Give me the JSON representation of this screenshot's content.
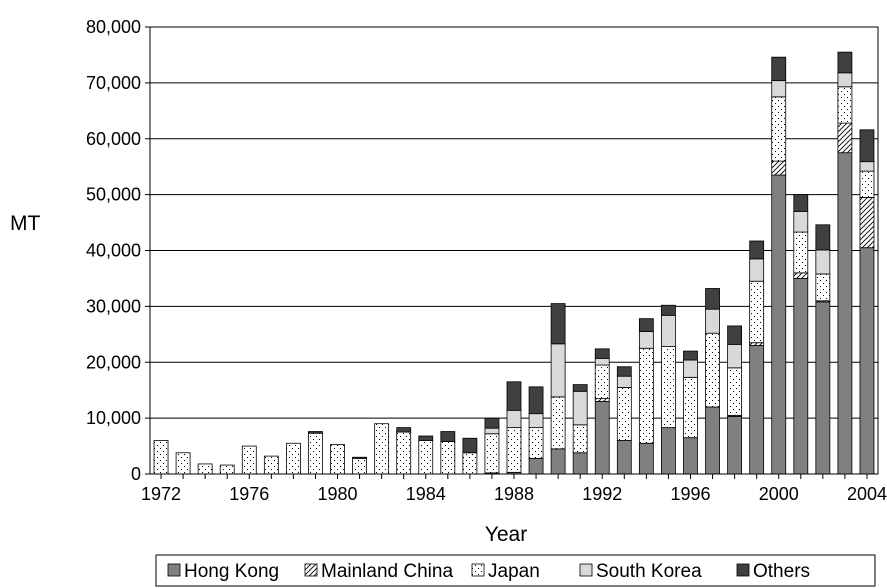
{
  "chart_data": {
    "type": "bar",
    "stacked": true,
    "title": "",
    "xlabel": "Year",
    "ylabel": "MT",
    "ylim": [
      0,
      80000
    ],
    "yticks": [
      "0",
      "10,000",
      "20,000",
      "30,000",
      "40,000",
      "50,000",
      "60,000",
      "70,000",
      "80,000"
    ],
    "xticks": [
      "1972",
      "1976",
      "1980",
      "1984",
      "1988",
      "1992",
      "1996",
      "2000",
      "2004"
    ],
    "grid": "horizontal",
    "legend_position": "bottom",
    "categories": [
      "1972",
      "1973",
      "1974",
      "1975",
      "1976",
      "1977",
      "1978",
      "1979",
      "1980",
      "1981",
      "1982",
      "1983",
      "1984",
      "1985",
      "1986",
      "1987",
      "1988",
      "1989",
      "1990",
      "1991",
      "1992",
      "1993",
      "1994",
      "1995",
      "1996",
      "1997",
      "1998",
      "1999",
      "2000",
      "2001",
      "2002",
      "2003",
      "2004"
    ],
    "series": [
      {
        "name": "Hong Kong",
        "color": "#808080",
        "pattern": "solid",
        "values": [
          0,
          0,
          0,
          0,
          0,
          0,
          0,
          0,
          0,
          0,
          0,
          0,
          0,
          0,
          0,
          200,
          300,
          2800,
          4500,
          3800,
          13000,
          6000,
          5500,
          8300,
          6500,
          12000,
          10300,
          23000,
          53500,
          35000,
          30800,
          57500,
          40500
        ]
      },
      {
        "name": "Mainland China",
        "color": "#ffffff",
        "pattern": "hatch",
        "values": [
          0,
          0,
          0,
          0,
          0,
          0,
          0,
          0,
          0,
          0,
          0,
          0,
          0,
          0,
          0,
          0,
          0,
          0,
          0,
          0,
          500,
          0,
          0,
          0,
          0,
          0,
          200,
          500,
          2500,
          1000,
          200,
          5300,
          9000
        ]
      },
      {
        "name": "Japan",
        "color": "#ffffff",
        "pattern": "dots",
        "values": [
          6000,
          3800,
          1800,
          1600,
          5000,
          3200,
          5500,
          7300,
          5300,
          2800,
          9000,
          7500,
          6000,
          5800,
          3800,
          7000,
          8000,
          5500,
          9300,
          5000,
          6000,
          9500,
          17000,
          14500,
          10800,
          13200,
          8500,
          11000,
          11500,
          7300,
          4800,
          6500,
          4700
        ]
      },
      {
        "name": "South Korea",
        "color": "#d9d9d9",
        "pattern": "solid",
        "values": [
          0,
          0,
          0,
          0,
          0,
          0,
          0,
          0,
          0,
          0,
          0,
          0,
          0,
          0,
          0,
          1000,
          3100,
          2500,
          9500,
          6000,
          1200,
          2000,
          3000,
          5600,
          3100,
          4300,
          4200,
          4000,
          2900,
          3700,
          4300,
          2500,
          1700
        ]
      },
      {
        "name": "Others",
        "color": "#404040",
        "pattern": "solid",
        "values": [
          0,
          0,
          0,
          0,
          0,
          0,
          0,
          300,
          0,
          200,
          0,
          800,
          800,
          1800,
          2600,
          1800,
          5100,
          4800,
          7200,
          1200,
          1700,
          1700,
          2300,
          1800,
          1600,
          3700,
          3300,
          3200,
          4200,
          3000,
          4500,
          3700,
          5700
        ]
      }
    ]
  }
}
